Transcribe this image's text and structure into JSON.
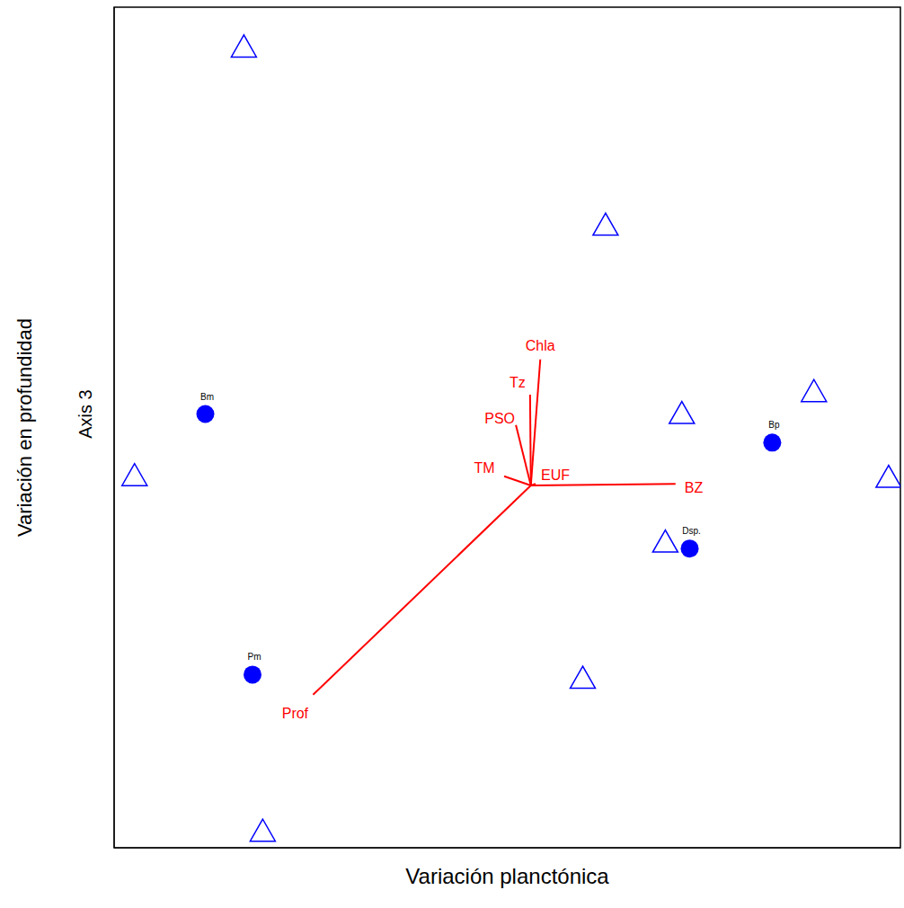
{
  "chart_data": {
    "type": "scatter",
    "xlabel": "Variación planctónica",
    "ylabel": "Variación en profundidad",
    "ylabel_inner": "Axis 3",
    "xlim": [
      0,
      100
    ],
    "ylim": [
      0,
      100
    ],
    "xticks": [],
    "yticks": [],
    "tick_labels": false,
    "grid": false,
    "series": [
      {
        "marker": "triangle",
        "color": "#0000ff",
        "x": [
          16.5,
          62.5,
          89.0,
          72.2,
          2.6,
          98.5,
          70.1,
          59.6,
          18.9
        ],
        "y": [
          95.2,
          74.0,
          54.2,
          51.6,
          44.2,
          44.0,
          36.3,
          20.1,
          1.9
        ]
      },
      {
        "marker": "circle",
        "color": "#0000ff",
        "labels": [
          "Bm",
          "Bp",
          "Dsp.",
          "Pm"
        ],
        "x": [
          11.6,
          83.7,
          73.2,
          17.6
        ],
        "y": [
          51.6,
          48.2,
          35.6,
          20.6
        ]
      }
    ],
    "vectors": {
      "color": "#ff0000",
      "origin": [
        53.0,
        43.1
      ],
      "labels": [
        "Chla",
        "Tz",
        "PSO",
        "TM",
        "EUF",
        "BZ",
        "Prof"
      ],
      "x": [
        54.2,
        52.9,
        51.1,
        49.6,
        53.6,
        71.4,
        25.3
      ],
      "y": [
        58.1,
        53.9,
        50.3,
        44.2,
        43.3,
        43.3,
        18.2
      ]
    }
  }
}
